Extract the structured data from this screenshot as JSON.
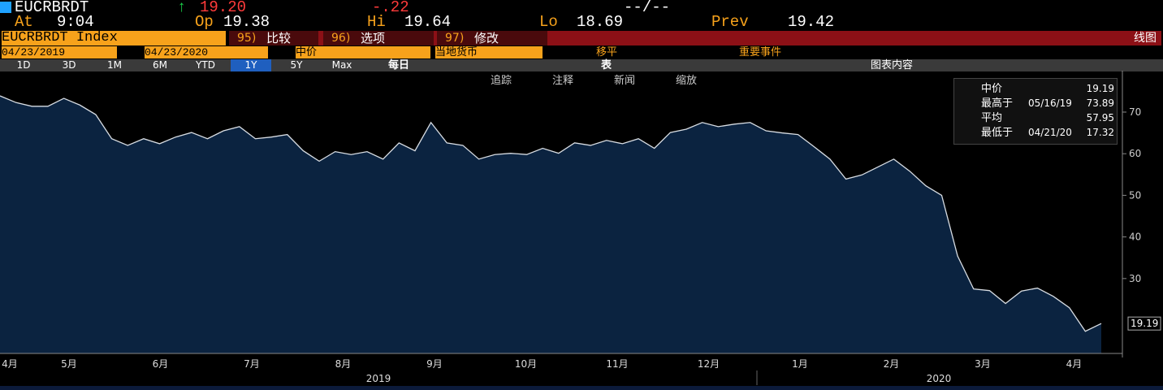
{
  "header": {
    "ticker": "EUCRBRDT",
    "arrow": "↑",
    "last": "19.20",
    "change": "-.22",
    "date": "--/--",
    "at_label": "At",
    "at": "9:04",
    "op_label": "Op",
    "op": "19.38",
    "hi_label": "Hi",
    "hi": "19.64",
    "lo_label": "Lo",
    "lo": "18.69",
    "prev_label": "Prev",
    "prev": "19.42"
  },
  "toolbar": {
    "security": "EUCRBRDT Index",
    "buttons": [
      {
        "num": "95)",
        "label": "比较"
      },
      {
        "num": "96)",
        "label": "选项"
      },
      {
        "num": "97)",
        "label": "修改"
      }
    ],
    "chart_kind": "线图",
    "start": "04/23/2019",
    "end": "04/23/2020",
    "field": "中价",
    "currency": "当地货币",
    "move": "移平",
    "events": "重要事件",
    "periods": [
      "1D",
      "3D",
      "1M",
      "6M",
      "YTD",
      "1Y",
      "5Y",
      "Max"
    ],
    "frequency": "每日",
    "table": "表",
    "content": "图表内容",
    "tools": [
      "追踪",
      "注释",
      "新闻",
      "缩放"
    ]
  },
  "legend": {
    "rows": [
      {
        "label": "中价",
        "value": "19.19"
      },
      {
        "label": "最高于",
        "date": "05/16/19",
        "value": "73.89"
      },
      {
        "label": "平均",
        "value": "57.95"
      },
      {
        "label": "最低于",
        "date": "04/21/20",
        "value": "17.32"
      }
    ]
  },
  "chart_data": {
    "type": "area",
    "fill": "#0b2340",
    "color": "#d8dde3",
    "values": [
      73.9,
      72.3,
      71.4,
      71.4,
      73.3,
      71.7,
      69.4,
      63.6,
      62.0,
      63.6,
      62.4,
      64.0,
      65.1,
      63.6,
      65.5,
      66.5,
      63.6,
      64.0,
      64.6,
      60.7,
      58.2,
      60.5,
      59.8,
      60.5,
      58.7,
      62.6,
      60.7,
      67.5,
      62.6,
      62.0,
      58.7,
      59.8,
      60.1,
      59.8,
      61.3,
      60.1,
      62.6,
      62.0,
      63.2,
      62.4,
      63.6,
      61.3,
      65.1,
      65.9,
      67.5,
      66.5,
      67.1,
      67.5,
      65.5,
      65.0,
      64.6,
      61.7,
      58.7,
      53.9,
      54.9,
      56.8,
      58.7,
      55.8,
      52.3,
      50.0,
      35.4,
      27.5,
      27.1,
      24.0,
      27.0,
      27.7,
      25.7,
      23.0,
      17.32,
      19.19
    ],
    "ylim": [
      12,
      78
    ],
    "yticks": [
      30,
      40,
      50,
      60,
      70
    ],
    "last_price": "19.19",
    "months": [
      "4月",
      "5月",
      "6月",
      "7月",
      "8月",
      "9月",
      "10月",
      "11月",
      "12月",
      "1月",
      "2月",
      "3月",
      "4月"
    ],
    "years": [
      "2019",
      "2020"
    ]
  }
}
